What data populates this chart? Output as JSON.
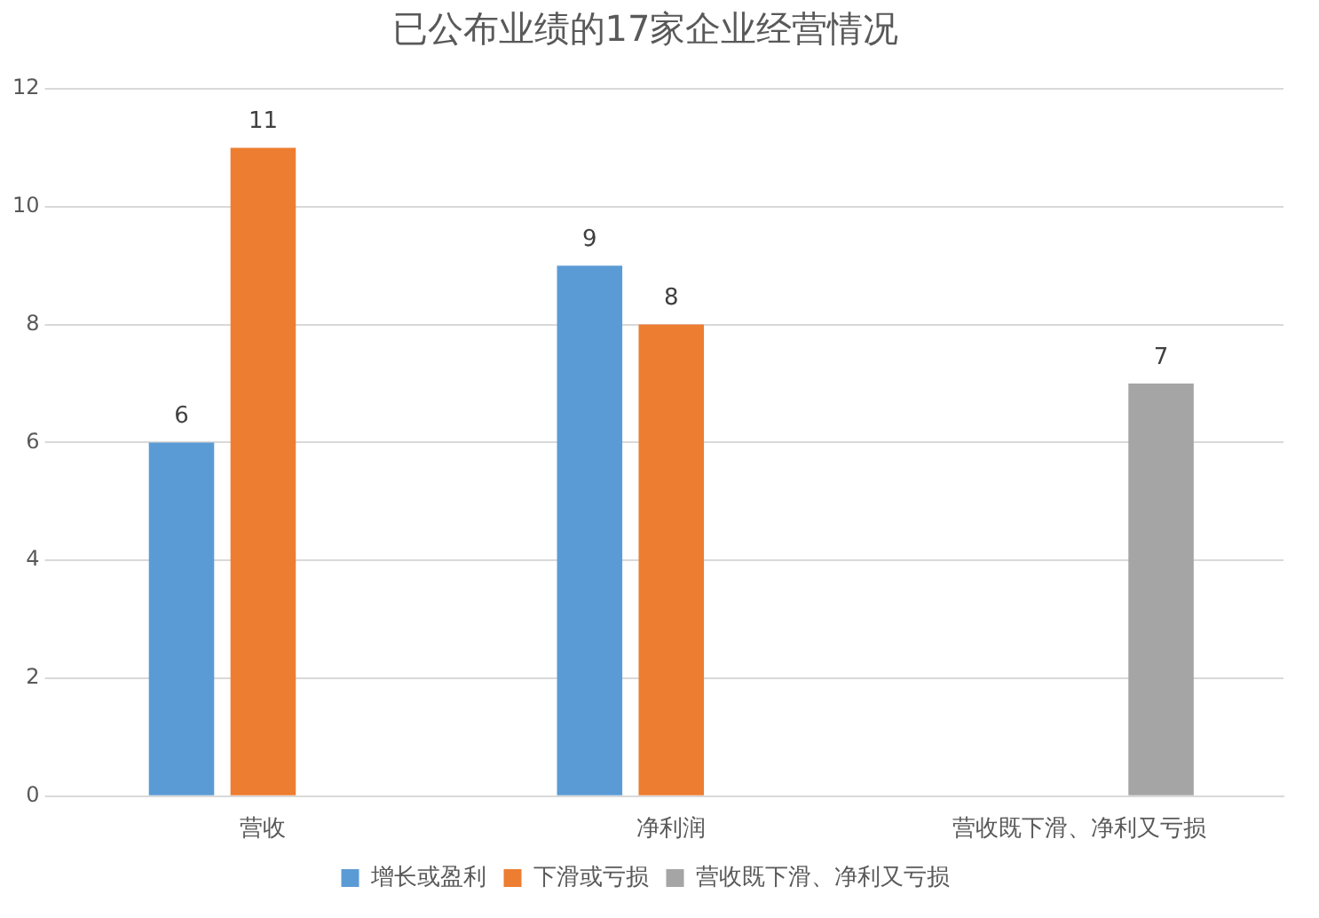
{
  "chart_data": {
    "type": "bar",
    "title": "已公布业绩的17家企业经营情况",
    "categories": [
      "营收",
      "净利润",
      "营收既下滑、净利又亏损"
    ],
    "series": [
      {
        "name": "增长或盈利",
        "color": "#5b9bd5",
        "values": [
          6,
          9,
          null
        ]
      },
      {
        "name": "下滑或亏损",
        "color": "#ed7d31",
        "values": [
          11,
          8,
          null
        ]
      },
      {
        "name": "营收既下滑、净利又亏损",
        "color": "#a5a5a5",
        "values": [
          null,
          null,
          7
        ]
      }
    ],
    "ylim": [
      0,
      12
    ],
    "yticks": [
      0,
      2,
      4,
      6,
      8,
      10,
      12
    ],
    "grid": "y",
    "legend": "bottom",
    "data_labels": true
  }
}
